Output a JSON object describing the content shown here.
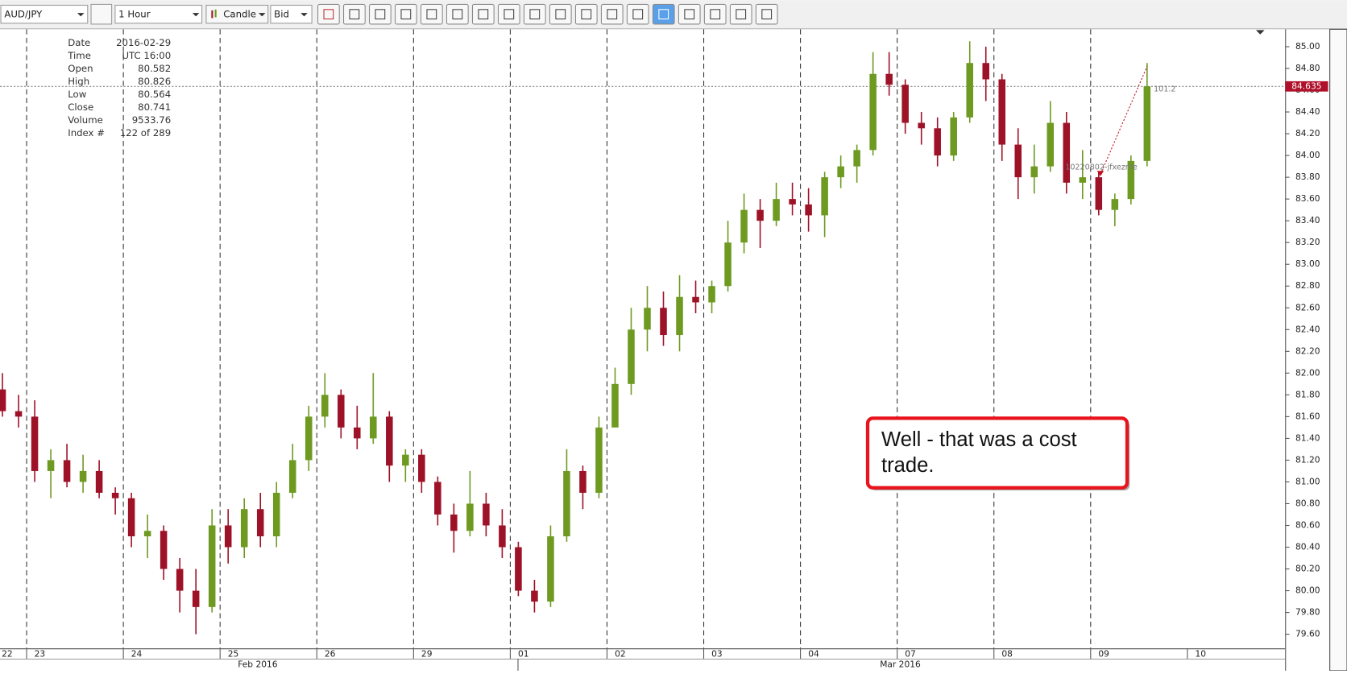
{
  "toolbar": {
    "instrument": "AUD/JPY",
    "period": "1 Hour",
    "chart_style": "Candle",
    "side": "Bid"
  },
  "info_panel": {
    "rows": [
      {
        "label": "Date",
        "value": "2016-02-29"
      },
      {
        "label": "Time",
        "value": "UTC 16:00"
      },
      {
        "label": "Open",
        "value": "80.582"
      },
      {
        "label": "High",
        "value": "80.826"
      },
      {
        "label": "Low",
        "value": "80.564"
      },
      {
        "label": "Close",
        "value": "80.741"
      },
      {
        "label": "Volume",
        "value": "9533.76"
      },
      {
        "label": "Index #",
        "value": "122 of 289"
      }
    ]
  },
  "chart_data": {
    "type": "candlestick",
    "up_color": "#6e9a22",
    "down_color": "#9e1228",
    "day_labels": [
      "22",
      "23",
      "24",
      "25",
      "26",
      "29",
      "01",
      "02",
      "03",
      "04",
      "07",
      "08",
      "09",
      "10"
    ],
    "month_labels": [
      "Feb 2016",
      "Mar 2016"
    ],
    "open": [
      81.85,
      81.65,
      81.6,
      81.1,
      81.2,
      81.0,
      81.1,
      80.9,
      80.85,
      80.5,
      80.55,
      80.2,
      80.0,
      79.85,
      80.6,
      80.4,
      80.75,
      80.5,
      80.9,
      81.2,
      81.6,
      81.8,
      81.5,
      81.4,
      81.6,
      81.15,
      81.25,
      81.0,
      80.7,
      80.55,
      80.8,
      80.6,
      80.4,
      80.0,
      79.9,
      80.5,
      81.1,
      80.9,
      81.5,
      81.9,
      82.4,
      82.6,
      82.35,
      82.7,
      82.65,
      82.8,
      83.2,
      83.5,
      83.4,
      83.6,
      83.55,
      83.45,
      83.8,
      83.9,
      84.05,
      84.75,
      84.65,
      84.3,
      84.25,
      84.0,
      84.35,
      84.85,
      84.7,
      84.1,
      83.8,
      83.9,
      84.3,
      83.75,
      83.8,
      83.5,
      83.6,
      83.95
    ],
    "high": [
      82.0,
      81.8,
      81.75,
      81.3,
      81.35,
      81.25,
      81.2,
      80.95,
      80.9,
      80.7,
      80.6,
      80.3,
      80.2,
      80.75,
      80.75,
      80.85,
      80.9,
      81.0,
      81.35,
      81.7,
      82.0,
      81.85,
      81.7,
      82.0,
      81.65,
      81.3,
      81.3,
      81.05,
      80.8,
      81.1,
      80.9,
      80.75,
      80.45,
      80.1,
      80.6,
      81.3,
      81.15,
      81.6,
      82.05,
      82.6,
      82.8,
      82.75,
      82.9,
      82.85,
      82.85,
      83.4,
      83.65,
      83.6,
      83.75,
      83.75,
      83.7,
      83.85,
      84.0,
      84.1,
      84.95,
      84.95,
      84.7,
      84.4,
      84.35,
      84.4,
      85.05,
      85.0,
      84.75,
      84.25,
      84.1,
      84.5,
      84.4,
      84.05,
      83.85,
      83.65,
      84.0,
      84.85
    ],
    "low": [
      81.6,
      81.5,
      81.0,
      80.85,
      80.95,
      80.9,
      80.85,
      80.7,
      80.4,
      80.3,
      80.1,
      79.8,
      79.6,
      79.8,
      80.25,
      80.3,
      80.4,
      80.4,
      80.85,
      81.1,
      81.5,
      81.4,
      81.3,
      81.35,
      81.0,
      81.0,
      80.9,
      80.6,
      80.35,
      80.5,
      80.5,
      80.3,
      79.95,
      79.8,
      79.85,
      80.45,
      80.75,
      80.85,
      81.55,
      81.8,
      82.2,
      82.25,
      82.2,
      82.55,
      82.55,
      82.75,
      83.1,
      83.15,
      83.35,
      83.45,
      83.3,
      83.25,
      83.7,
      83.75,
      84.0,
      84.55,
      84.2,
      84.1,
      83.9,
      83.95,
      84.3,
      84.5,
      83.95,
      83.6,
      83.65,
      83.85,
      83.65,
      83.6,
      83.45,
      83.35,
      83.55,
      83.9
    ],
    "close": [
      81.65,
      81.6,
      81.1,
      81.2,
      81.0,
      81.1,
      80.9,
      80.85,
      80.5,
      80.55,
      80.2,
      80.0,
      79.85,
      80.6,
      80.4,
      80.75,
      80.5,
      80.9,
      81.2,
      81.6,
      81.8,
      81.5,
      81.4,
      81.6,
      81.15,
      81.25,
      81.0,
      80.7,
      80.55,
      80.8,
      80.6,
      80.4,
      80.0,
      79.9,
      80.5,
      81.1,
      80.9,
      81.5,
      81.9,
      82.4,
      82.6,
      82.35,
      82.7,
      82.65,
      82.8,
      83.2,
      83.5,
      83.4,
      83.6,
      83.55,
      83.45,
      83.8,
      83.9,
      84.05,
      84.75,
      84.65,
      84.3,
      84.25,
      84.0,
      84.35,
      84.85,
      84.7,
      84.1,
      83.8,
      83.9,
      84.3,
      83.75,
      83.8,
      83.5,
      83.6,
      83.95,
      84.635
    ],
    "current_price": 84.635,
    "order_label": "10220802-jfxezrile",
    "order_value": "101.2",
    "ylim": [
      79.47,
      85.16
    ],
    "yticks": [
      {
        "value": 79.6,
        "label": "79.60"
      },
      {
        "value": 79.8,
        "label": "79.80"
      },
      {
        "value": 80,
        "label": "80.00"
      },
      {
        "value": 80.2,
        "label": "80.20"
      },
      {
        "value": 80.4,
        "label": "80.40"
      },
      {
        "value": 80.6,
        "label": "80.60"
      },
      {
        "value": 80.8,
        "label": "80.80"
      },
      {
        "value": 81,
        "label": "81.00"
      },
      {
        "value": 81.2,
        "label": "81.20"
      },
      {
        "value": 81.4,
        "label": "81.40"
      },
      {
        "value": 81.6,
        "label": "81.60"
      },
      {
        "value": 81.8,
        "label": "81.80"
      },
      {
        "value": 82,
        "label": "82.00"
      },
      {
        "value": 82.2,
        "label": "82.20"
      },
      {
        "value": 82.4,
        "label": "82.40"
      },
      {
        "value": 82.6,
        "label": "82.60"
      },
      {
        "value": 82.8,
        "label": "82.80"
      },
      {
        "value": 83,
        "label": "83.00"
      },
      {
        "value": 83.2,
        "label": "83.20"
      },
      {
        "value": 83.4,
        "label": "83.40"
      },
      {
        "value": 83.6,
        "label": "83.60"
      },
      {
        "value": 83.8,
        "label": "83.80"
      },
      {
        "value": 84,
        "label": "84.00"
      },
      {
        "value": 84.2,
        "label": "84.20"
      },
      {
        "value": 84.4,
        "label": "84.40"
      },
      {
        "value": 84.6,
        "label": "84.60"
      },
      {
        "value": 84.8,
        "label": "84.80"
      },
      {
        "value": 85,
        "label": "85.00"
      }
    ],
    "grid": false
  },
  "annotation": {
    "lines": [
      "Well - that was a cost",
      "trade."
    ]
  }
}
